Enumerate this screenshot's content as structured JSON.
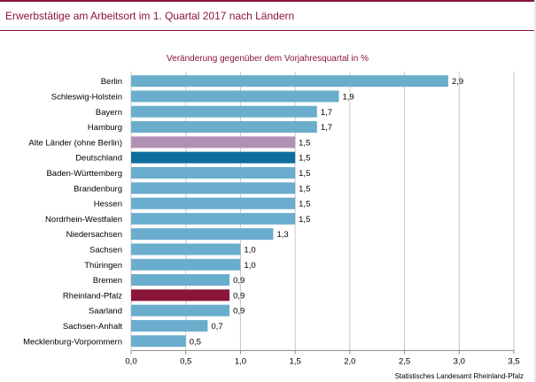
{
  "header": {
    "title": "Erwerbstätige am Arbeitsort im 1. Quartal 2017 nach Ländern"
  },
  "colors": {
    "brand": "#8a1538",
    "bar_default": "#6aadcc",
    "bar_highlight_west": "#b091b4",
    "bar_highlight_de": "#0d6e9e",
    "bar_highlight_rp": "#8a1538",
    "grid": "#c8c8c8"
  },
  "chart_data": {
    "type": "bar",
    "orientation": "horizontal",
    "subtitle": "Veränderung gegenüber dem Vorjahresquartal in %",
    "categories": [
      "Berlin",
      "Schleswig-Holstein",
      "Bayern",
      "Hamburg",
      "Alte Länder (ohne Berlin)",
      "Deutschland",
      "Baden-Württemberg",
      "Brandenburg",
      "Hessen",
      "Nordrhein-Westfalen",
      "Niedersachsen",
      "Sachsen",
      "Thüringen",
      "Bremen",
      "Rheinland-Pfalz",
      "Saarland",
      "Sachsen-Anhalt",
      "Mecklenburg-Vorpommern"
    ],
    "values": [
      2.9,
      1.9,
      1.7,
      1.7,
      1.5,
      1.5,
      1.5,
      1.5,
      1.5,
      1.5,
      1.3,
      1.0,
      1.0,
      0.9,
      0.9,
      0.9,
      0.7,
      0.5
    ],
    "value_labels": [
      "2,9",
      "1,9",
      "1,7",
      "1,7",
      "1,5",
      "1,5",
      "1,5",
      "1,5",
      "1,5",
      "1,5",
      "1,3",
      "1,0",
      "1,0",
      "0,9",
      "0,9",
      "0,9",
      "0,7",
      "0,5"
    ],
    "bar_colors": [
      "#6aadcc",
      "#6aadcc",
      "#6aadcc",
      "#6aadcc",
      "#b091b4",
      "#0d6e9e",
      "#6aadcc",
      "#6aadcc",
      "#6aadcc",
      "#6aadcc",
      "#6aadcc",
      "#6aadcc",
      "#6aadcc",
      "#6aadcc",
      "#8a1538",
      "#6aadcc",
      "#6aadcc",
      "#6aadcc"
    ],
    "xlim": [
      0,
      3.5
    ],
    "x_ticks": [
      0,
      0.5,
      1.0,
      1.5,
      2.0,
      2.5,
      3.0,
      3.5
    ],
    "x_tick_labels": [
      "0,0",
      "0,5",
      "1,0",
      "1,5",
      "2,0",
      "2,5",
      "3,0",
      "3,5"
    ],
    "grid": "vertical",
    "legend": "none"
  },
  "source": "Statistisches Landesamt Rheinland-Pfalz"
}
